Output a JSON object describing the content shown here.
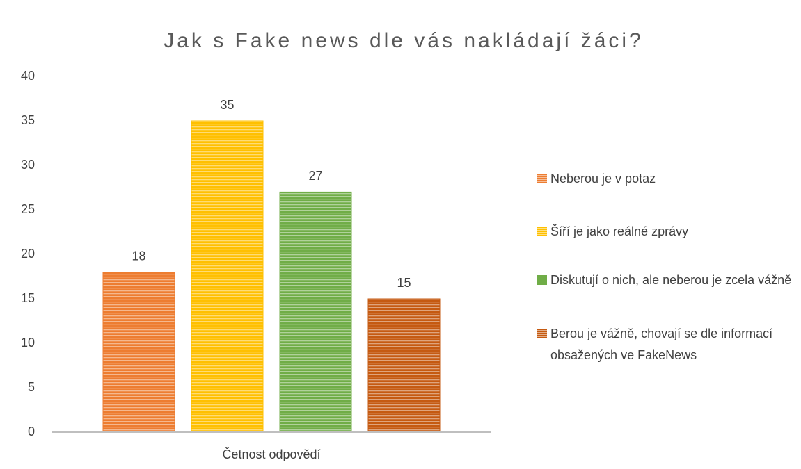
{
  "chart_data": {
    "type": "bar",
    "title": "Jak s Fake news dle vás nakládají žáci?",
    "categories": [
      "Četnost odpovědí"
    ],
    "series": [
      {
        "name": "Neberou je v potaz",
        "color": "#ed7d31",
        "values": [
          18
        ]
      },
      {
        "name": "Šíří je jako reálné zprávy",
        "color": "#ffc000",
        "values": [
          35
        ]
      },
      {
        "name": "Diskutují o nich, ale neberou je zcela vážně",
        "color": "#70ad47",
        "values": [
          27
        ]
      },
      {
        "name": "Berou je vážně, chovají se dle informací obsažených ve FakeNews",
        "color": "#c55a11",
        "values": [
          15
        ]
      }
    ],
    "ylim": [
      0,
      40
    ],
    "yticks": [
      0,
      5,
      10,
      15,
      20,
      25,
      30,
      35,
      40
    ],
    "grid": false,
    "legend": "right"
  }
}
